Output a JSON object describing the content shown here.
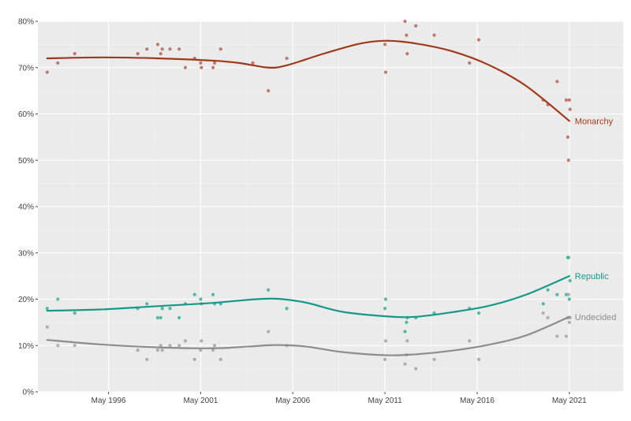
{
  "chart_data": {
    "type": "scatter",
    "title": "",
    "xlabel": "",
    "ylabel": "",
    "x_range": [
      "1992-07-01",
      "2024-04-01"
    ],
    "ylim": [
      0,
      80
    ],
    "y_ticks": [
      {
        "value": 0,
        "label": "0%"
      },
      {
        "value": 10,
        "label": "10%"
      },
      {
        "value": 20,
        "label": "20%"
      },
      {
        "value": 30,
        "label": "30%"
      },
      {
        "value": 40,
        "label": "40%"
      },
      {
        "value": 50,
        "label": "50%"
      },
      {
        "value": 60,
        "label": "60%"
      },
      {
        "value": 70,
        "label": "70%"
      },
      {
        "value": 80,
        "label": "80%"
      }
    ],
    "x_ticks": [
      {
        "value": "1996-05-01",
        "label": "May 1996"
      },
      {
        "value": "2001-05-01",
        "label": "May 2001"
      },
      {
        "value": "2006-05-01",
        "label": "May 2006"
      },
      {
        "value": "2011-05-01",
        "label": "May 2011"
      },
      {
        "value": "2016-05-01",
        "label": "May 2016"
      },
      {
        "value": "2021-05-01",
        "label": "May 2021"
      }
    ],
    "grid": true,
    "background": "#ebebeb",
    "series": [
      {
        "name": "Monarchy",
        "color": "#a0391b",
        "point_color": "#b5645a",
        "trend": [
          {
            "x": "1993-01-01",
            "y": 72
          },
          {
            "x": "1996-01-01",
            "y": 72.2
          },
          {
            "x": "1999-01-01",
            "y": 72
          },
          {
            "x": "2002-01-01",
            "y": 71.5
          },
          {
            "x": "2003-06-01",
            "y": 71
          },
          {
            "x": "2005-01-01",
            "y": 70
          },
          {
            "x": "2006-01-01",
            "y": 70.5
          },
          {
            "x": "2008-01-01",
            "y": 73
          },
          {
            "x": "2010-01-01",
            "y": 75.2
          },
          {
            "x": "2011-06-01",
            "y": 75.8
          },
          {
            "x": "2013-01-01",
            "y": 75.2
          },
          {
            "x": "2015-01-01",
            "y": 73.5
          },
          {
            "x": "2017-01-01",
            "y": 70.5
          },
          {
            "x": "2019-01-01",
            "y": 66
          },
          {
            "x": "2021-05-01",
            "y": 58.5
          }
        ],
        "points": [
          {
            "x": "1993-01-01",
            "y": 69
          },
          {
            "x": "1993-08-01",
            "y": 71
          },
          {
            "x": "1994-07-01",
            "y": 73
          },
          {
            "x": "1997-12-01",
            "y": 73
          },
          {
            "x": "1998-06-01",
            "y": 74
          },
          {
            "x": "1999-01-01",
            "y": 75
          },
          {
            "x": "1999-03-01",
            "y": 73
          },
          {
            "x": "1999-04-01",
            "y": 74
          },
          {
            "x": "1999-09-01",
            "y": 74
          },
          {
            "x": "2000-03-01",
            "y": 74
          },
          {
            "x": "2000-07-01",
            "y": 70
          },
          {
            "x": "2001-01-01",
            "y": 72
          },
          {
            "x": "2001-05-01",
            "y": 71
          },
          {
            "x": "2001-05-15",
            "y": 70
          },
          {
            "x": "2002-01-01",
            "y": 70
          },
          {
            "x": "2002-02-01",
            "y": 71
          },
          {
            "x": "2002-06-01",
            "y": 74
          },
          {
            "x": "2004-03-01",
            "y": 71
          },
          {
            "x": "2005-01-01",
            "y": 65
          },
          {
            "x": "2006-01-01",
            "y": 72
          },
          {
            "x": "2011-05-01",
            "y": 75
          },
          {
            "x": "2011-05-15",
            "y": 69
          },
          {
            "x": "2012-06-01",
            "y": 80
          },
          {
            "x": "2012-07-01",
            "y": 77
          },
          {
            "x": "2012-07-15",
            "y": 73
          },
          {
            "x": "2013-01-01",
            "y": 79
          },
          {
            "x": "2014-01-01",
            "y": 77
          },
          {
            "x": "2015-12-01",
            "y": 71
          },
          {
            "x": "2016-06-01",
            "y": 76
          },
          {
            "x": "2019-12-01",
            "y": 63
          },
          {
            "x": "2020-03-01",
            "y": 62
          },
          {
            "x": "2020-09-01",
            "y": 67
          },
          {
            "x": "2021-03-01",
            "y": 63
          },
          {
            "x": "2021-04-01",
            "y": 55
          },
          {
            "x": "2021-04-15",
            "y": 50
          },
          {
            "x": "2021-05-01",
            "y": 63
          },
          {
            "x": "2021-05-15",
            "y": 61
          }
        ]
      },
      {
        "name": "Republic",
        "color": "#16998a",
        "point_color": "#3aaf9a",
        "trend": [
          {
            "x": "1993-01-01",
            "y": 17.5
          },
          {
            "x": "1996-01-01",
            "y": 17.8
          },
          {
            "x": "1999-01-01",
            "y": 18.5
          },
          {
            "x": "2002-01-01",
            "y": 19.2
          },
          {
            "x": "2004-01-01",
            "y": 19.9
          },
          {
            "x": "2005-06-01",
            "y": 20.1
          },
          {
            "x": "2007-01-01",
            "y": 19.3
          },
          {
            "x": "2009-01-01",
            "y": 17.3
          },
          {
            "x": "2011-06-01",
            "y": 16.3
          },
          {
            "x": "2013-01-01",
            "y": 16.2
          },
          {
            "x": "2015-01-01",
            "y": 17.2
          },
          {
            "x": "2017-01-01",
            "y": 18.6
          },
          {
            "x": "2019-01-01",
            "y": 21
          },
          {
            "x": "2021-05-01",
            "y": 25
          }
        ],
        "points": [
          {
            "x": "1993-01-01",
            "y": 18
          },
          {
            "x": "1993-08-01",
            "y": 20
          },
          {
            "x": "1994-07-01",
            "y": 17
          },
          {
            "x": "1997-12-01",
            "y": 18
          },
          {
            "x": "1998-06-01",
            "y": 19
          },
          {
            "x": "1999-01-01",
            "y": 16
          },
          {
            "x": "1999-03-01",
            "y": 16
          },
          {
            "x": "1999-04-01",
            "y": 18
          },
          {
            "x": "1999-09-01",
            "y": 18
          },
          {
            "x": "2000-03-01",
            "y": 16
          },
          {
            "x": "2000-07-01",
            "y": 19
          },
          {
            "x": "2001-01-01",
            "y": 21
          },
          {
            "x": "2001-05-01",
            "y": 20
          },
          {
            "x": "2001-05-15",
            "y": 19
          },
          {
            "x": "2002-01-01",
            "y": 21
          },
          {
            "x": "2002-02-01",
            "y": 19
          },
          {
            "x": "2002-06-01",
            "y": 19
          },
          {
            "x": "2005-01-01",
            "y": 22
          },
          {
            "x": "2006-01-01",
            "y": 18
          },
          {
            "x": "2011-05-01",
            "y": 18
          },
          {
            "x": "2011-05-15",
            "y": 20
          },
          {
            "x": "2012-06-01",
            "y": 13
          },
          {
            "x": "2012-07-01",
            "y": 15
          },
          {
            "x": "2012-07-15",
            "y": 16
          },
          {
            "x": "2013-01-01",
            "y": 16
          },
          {
            "x": "2014-01-01",
            "y": 17
          },
          {
            "x": "2015-12-01",
            "y": 18
          },
          {
            "x": "2016-06-01",
            "y": 17
          },
          {
            "x": "2019-12-01",
            "y": 19
          },
          {
            "x": "2020-03-01",
            "y": 22
          },
          {
            "x": "2020-09-01",
            "y": 21
          },
          {
            "x": "2021-03-01",
            "y": 21
          },
          {
            "x": "2021-04-01",
            "y": 29
          },
          {
            "x": "2021-04-15",
            "y": 29
          },
          {
            "x": "2021-05-01",
            "y": 20
          },
          {
            "x": "2021-05-15",
            "y": 24
          }
        ]
      },
      {
        "name": "Undecided",
        "color": "#8d8d8d",
        "point_color": "#a3a3a3",
        "trend": [
          {
            "x": "1993-01-01",
            "y": 11.2
          },
          {
            "x": "1996-01-01",
            "y": 10.2
          },
          {
            "x": "1999-01-01",
            "y": 9.6
          },
          {
            "x": "2002-01-01",
            "y": 9.4
          },
          {
            "x": "2004-01-01",
            "y": 9.8
          },
          {
            "x": "2005-06-01",
            "y": 10.1
          },
          {
            "x": "2007-01-01",
            "y": 9.8
          },
          {
            "x": "2009-01-01",
            "y": 8.6
          },
          {
            "x": "2011-06-01",
            "y": 7.9
          },
          {
            "x": "2013-01-01",
            "y": 8.1
          },
          {
            "x": "2015-01-01",
            "y": 8.9
          },
          {
            "x": "2017-01-01",
            "y": 10.2
          },
          {
            "x": "2019-01-01",
            "y": 12.2
          },
          {
            "x": "2021-05-01",
            "y": 16.2
          }
        ],
        "points": [
          {
            "x": "1993-01-01",
            "y": 14
          },
          {
            "x": "1993-08-01",
            "y": 10
          },
          {
            "x": "1994-07-01",
            "y": 10
          },
          {
            "x": "1997-12-01",
            "y": 9
          },
          {
            "x": "1998-06-01",
            "y": 7
          },
          {
            "x": "1999-01-01",
            "y": 9
          },
          {
            "x": "1999-03-01",
            "y": 10
          },
          {
            "x": "1999-04-01",
            "y": 9
          },
          {
            "x": "1999-09-01",
            "y": 10
          },
          {
            "x": "2000-03-01",
            "y": 10
          },
          {
            "x": "2000-07-01",
            "y": 11
          },
          {
            "x": "2001-01-01",
            "y": 7
          },
          {
            "x": "2001-05-01",
            "y": 9
          },
          {
            "x": "2001-05-15",
            "y": 11
          },
          {
            "x": "2002-01-01",
            "y": 9
          },
          {
            "x": "2002-02-01",
            "y": 10
          },
          {
            "x": "2002-06-01",
            "y": 7
          },
          {
            "x": "2005-01-01",
            "y": 13
          },
          {
            "x": "2006-01-01",
            "y": 10
          },
          {
            "x": "2011-05-01",
            "y": 7
          },
          {
            "x": "2011-05-15",
            "y": 11
          },
          {
            "x": "2012-06-01",
            "y": 6
          },
          {
            "x": "2012-07-01",
            "y": 8
          },
          {
            "x": "2012-07-15",
            "y": 11
          },
          {
            "x": "2013-01-01",
            "y": 5
          },
          {
            "x": "2014-01-01",
            "y": 7
          },
          {
            "x": "2015-12-01",
            "y": 11
          },
          {
            "x": "2016-06-01",
            "y": 7
          },
          {
            "x": "2019-12-01",
            "y": 17
          },
          {
            "x": "2020-03-01",
            "y": 16
          },
          {
            "x": "2020-09-01",
            "y": 12
          },
          {
            "x": "2021-03-01",
            "y": 12
          },
          {
            "x": "2021-04-01",
            "y": 16
          },
          {
            "x": "2021-04-15",
            "y": 21
          },
          {
            "x": "2021-05-01",
            "y": 15
          },
          {
            "x": "2021-05-15",
            "y": 16
          }
        ]
      }
    ]
  }
}
